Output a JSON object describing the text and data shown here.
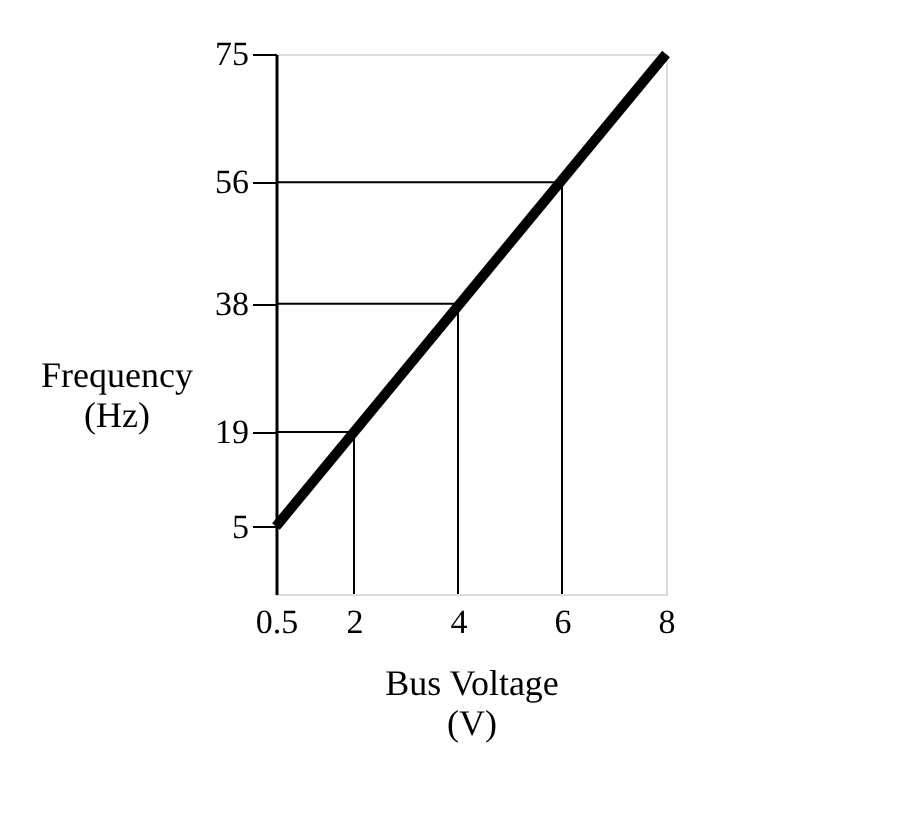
{
  "chart_data": {
    "type": "line",
    "xlabel": "Bus Voltage\n(V)",
    "ylabel": "Frequency\n(Hz)",
    "x": [
      0.5,
      8
    ],
    "series": [
      {
        "color": "#000000",
        "values": [
          5,
          75
        ]
      },
      {
        "color": "#000000",
        "x": [
          0.5,
          2,
          2
        ],
        "values": [
          19,
          19,
          -5
        ]
      },
      {
        "color": "#000000",
        "x": [
          0.5,
          4,
          4
        ],
        "values": [
          38,
          38,
          -5
        ]
      },
      {
        "color": "#000000",
        "x": [
          0.5,
          6,
          6
        ],
        "values": [
          56,
          56,
          -5
        ]
      }
    ],
    "xlim": [
      0.5,
      8
    ],
    "xticks": [
      0.5,
      2,
      4,
      6,
      8
    ],
    "ylim": [
      -5,
      75
    ],
    "yticks": [
      5,
      19,
      38,
      56,
      75
    ],
    "line_style": "solid",
    "marker": "none"
  }
}
